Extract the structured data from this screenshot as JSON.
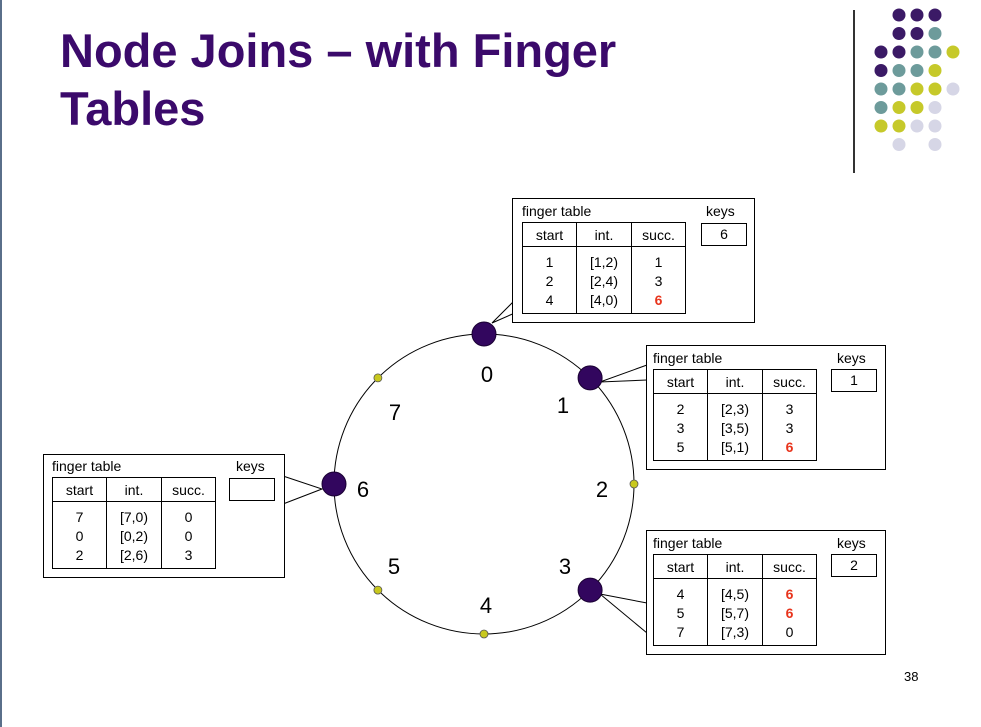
{
  "slide": {
    "title_line1": "Node Joins – with Finger",
    "title_line2": "Tables",
    "slide_number": "38"
  },
  "ring": {
    "positions": [
      "0",
      "1",
      "2",
      "3",
      "4",
      "5",
      "6",
      "7"
    ],
    "active_nodes": [
      0,
      1,
      3,
      6
    ]
  },
  "finger_tables": {
    "common": {
      "title": "finger table",
      "keys_label": "keys",
      "col_start": "start",
      "col_int": "int.",
      "col_succ": "succ."
    },
    "node0": {
      "keys": "6",
      "rows": [
        {
          "start": "1",
          "int": "[1,2)",
          "succ": "1"
        },
        {
          "start": "2",
          "int": "[2,4)",
          "succ": "3"
        },
        {
          "start": "4",
          "int": "[4,0)",
          "succ": "6"
        }
      ]
    },
    "node1": {
      "keys": "1",
      "rows": [
        {
          "start": "2",
          "int": "[2,3)",
          "succ": "3"
        },
        {
          "start": "3",
          "int": "[3,5)",
          "succ": "3"
        },
        {
          "start": "5",
          "int": "[5,1)",
          "succ": "6"
        }
      ]
    },
    "node3": {
      "keys": "2",
      "rows": [
        {
          "start": "4",
          "int": "[4,5)",
          "succ": "6"
        },
        {
          "start": "5",
          "int": "[5,7)",
          "succ": "6"
        },
        {
          "start": "7",
          "int": "[7,3)",
          "succ": "0"
        }
      ]
    },
    "node6": {
      "keys": "",
      "rows": [
        {
          "start": "7",
          "int": "[7,0)",
          "succ": "0"
        },
        {
          "start": "0",
          "int": "[0,2)",
          "succ": "0"
        },
        {
          "start": "2",
          "int": "[2,6)",
          "succ": "3"
        }
      ]
    }
  },
  "colors": {
    "title": "#3b0a6b",
    "node": "#32065e",
    "slot": "#c8c81e",
    "highlight": "#e8341c",
    "dot_palette": [
      "#3b1a66",
      "#6d9b9b",
      "#c6c92a",
      "#d6d6e6"
    ]
  }
}
